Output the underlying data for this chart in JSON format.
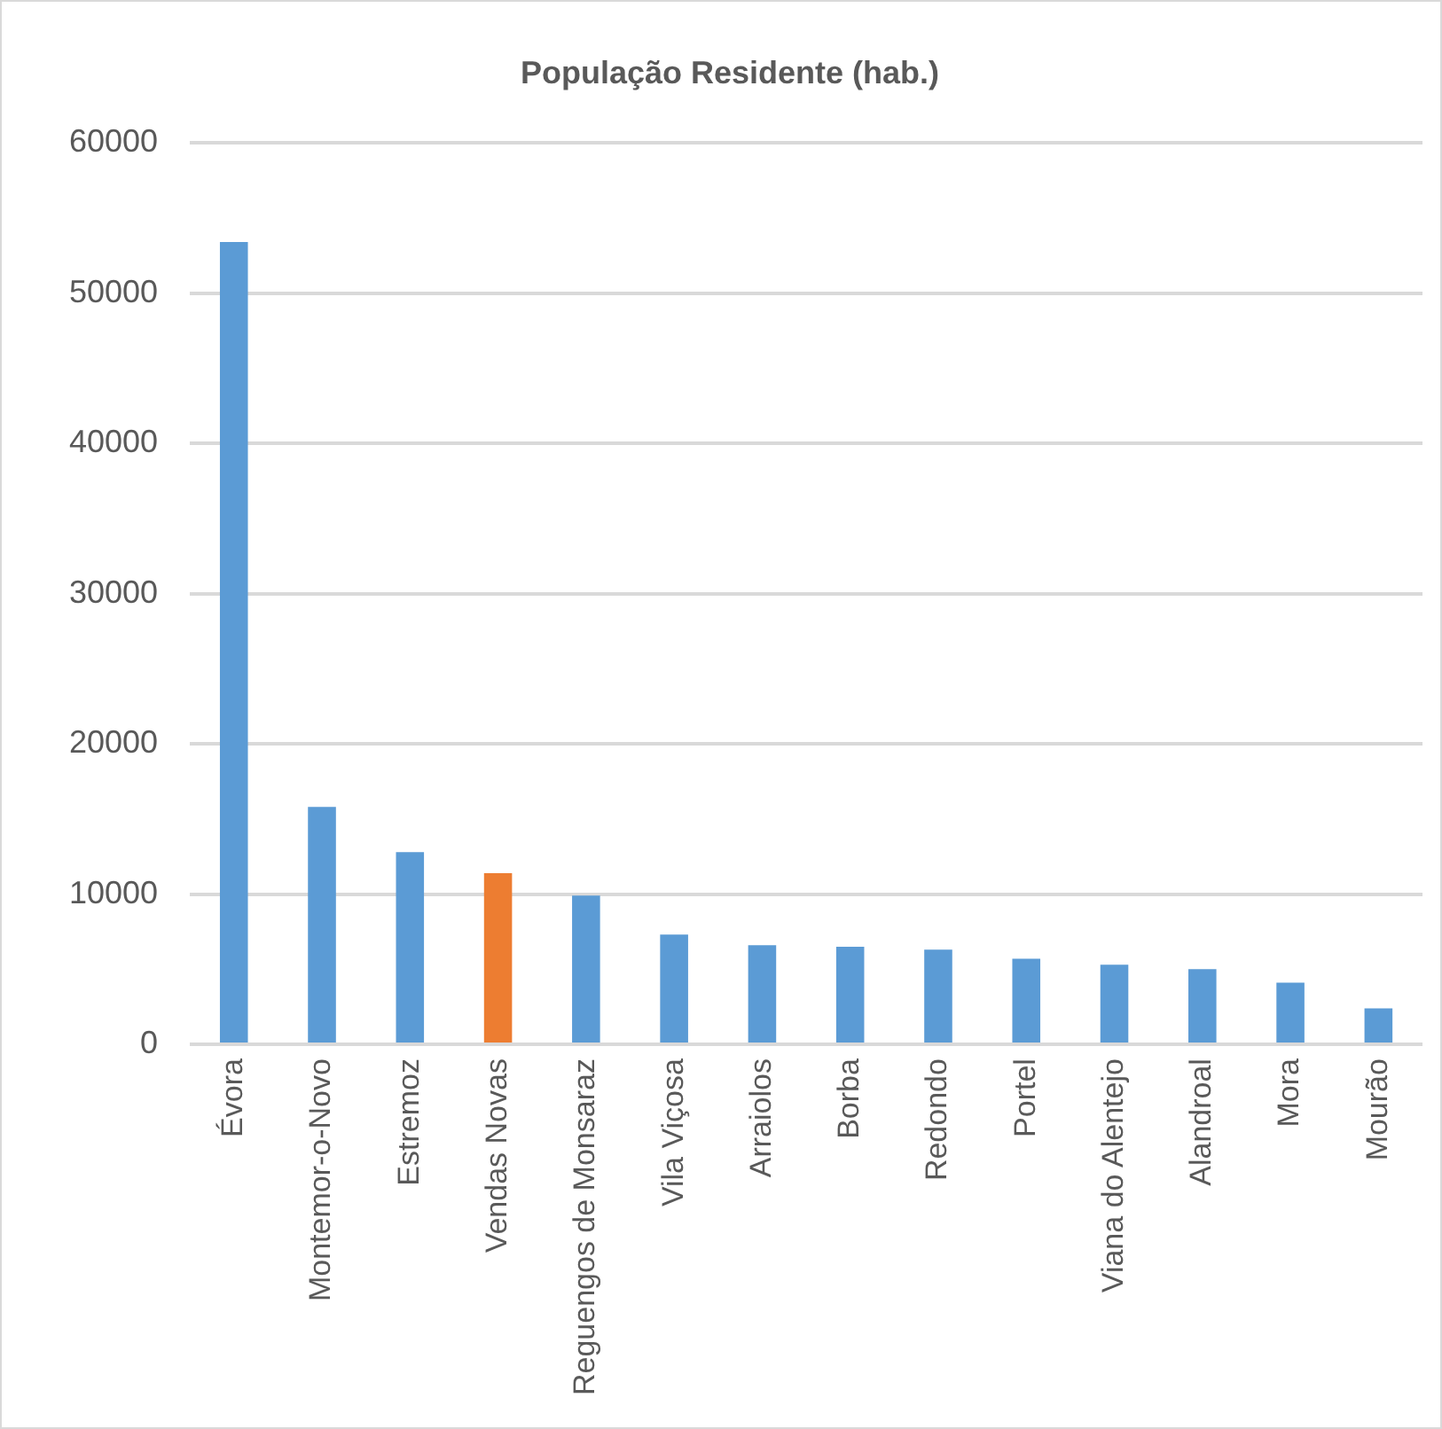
{
  "chart_data": {
    "type": "bar",
    "title": "População Residente (hab.)",
    "categories": [
      "Évora",
      "Montemor-o-Novo",
      "Estremoz",
      "Vendas Novas",
      "Reguengos de Monsaraz",
      "Vila Viçosa",
      "Arraiolos",
      "Borba",
      "Redondo",
      "Portel",
      "Viana do Alentejo",
      "Alandroal",
      "Mora",
      "Mourão"
    ],
    "values": [
      53400,
      15800,
      12800,
      11400,
      9900,
      7300,
      6600,
      6500,
      6300,
      5700,
      5300,
      5000,
      4100,
      2400
    ],
    "colors": [
      "#5b9bd5",
      "#5b9bd5",
      "#5b9bd5",
      "#ed7d31",
      "#5b9bd5",
      "#5b9bd5",
      "#5b9bd5",
      "#5b9bd5",
      "#5b9bd5",
      "#5b9bd5",
      "#5b9bd5",
      "#5b9bd5",
      "#5b9bd5",
      "#5b9bd5"
    ],
    "ylim": [
      0,
      60000
    ],
    "yticks": [
      0,
      10000,
      20000,
      30000,
      40000,
      50000,
      60000
    ],
    "grid": "y",
    "legend": false
  }
}
